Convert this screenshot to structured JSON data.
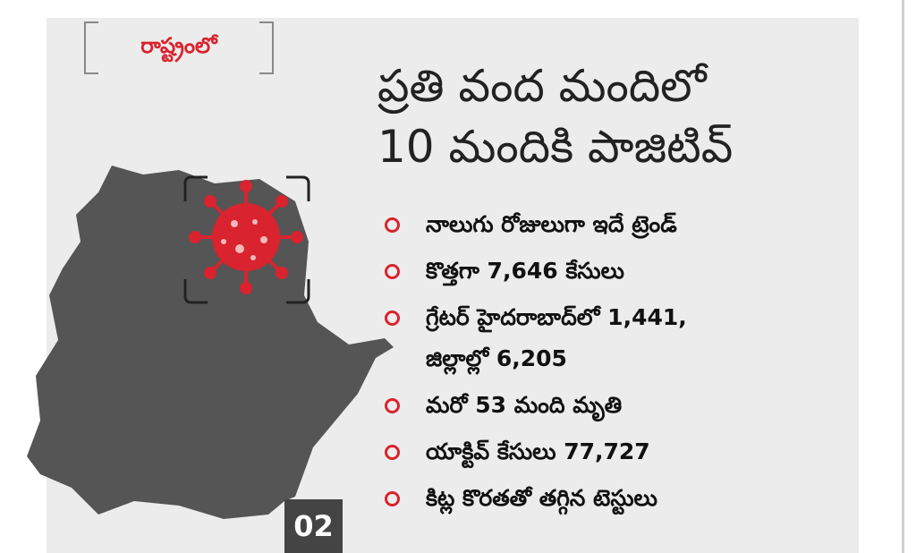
{
  "tag": "రాష్ట్రంలో",
  "headline": [
    "ప్రతి వంద మందిలో",
    "10 మందికి పాజిటివ్"
  ],
  "bullets": [
    [
      "నాలుగు రోజులుగా ఇదే ట్రెండ్"
    ],
    [
      "కొత్తగా 7,646 కేసులు"
    ],
    [
      "గ్రేటర్ హైదరాబాద్‌లో 1,441,",
      "జిల్లాల్లో 6,205"
    ],
    [
      "మరో 53 మంది మృతి"
    ],
    [
      "యాక్టివ్ కేసులు 77,727"
    ],
    [
      "కిట్ల కొరతతో తగ్గిన టెస్టులు"
    ]
  ],
  "page_number": "02"
}
